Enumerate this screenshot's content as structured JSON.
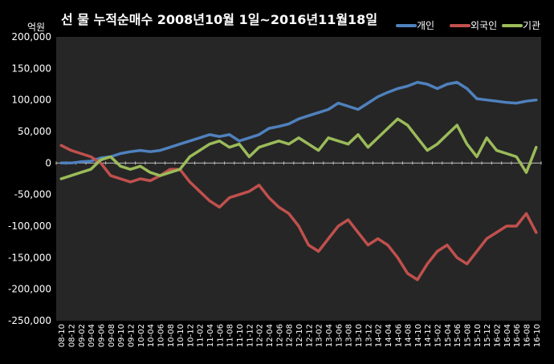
{
  "chart_data": {
    "type": "line",
    "title": "선 물 누적순매수 2008년10월 1일~2016년11월18일",
    "unit_label": "억원",
    "ylim": [
      -250000,
      200000
    ],
    "y_ticks": [
      200000,
      150000,
      100000,
      50000,
      0,
      -50000,
      -100000,
      -150000,
      -200000,
      -250000
    ],
    "y_tick_labels": [
      "200,000",
      "150,000",
      "100,000",
      "50,000",
      "0",
      "-50,000",
      "-100,000",
      "-150,000",
      "-200,000",
      "-250,000"
    ],
    "x_tick_labels": [
      "08-10",
      "08-12",
      "09-02",
      "09-04",
      "09-06",
      "09-08",
      "09-10",
      "09-12",
      "10-02",
      "10-04",
      "10-06",
      "10-08",
      "10-10",
      "10-12",
      "11-02",
      "11-04",
      "11-06",
      "11-08",
      "11-10",
      "11-12",
      "12-02",
      "12-04",
      "12-06",
      "12-08",
      "12-10",
      "12-12",
      "13-02",
      "13-04",
      "13-06",
      "13-08",
      "13-10",
      "13-12",
      "14-02",
      "14-04",
      "14-06",
      "14-08",
      "14-10",
      "14-12",
      "15-02",
      "15-04",
      "15-06",
      "15-08",
      "15-10",
      "15-12",
      "16-02",
      "16-04",
      "16-06",
      "16-08",
      "16-10"
    ],
    "grid": false,
    "legend_position": "top-right",
    "series": [
      {
        "name": "개인",
        "color": "#4f81bd",
        "values": [
          0,
          0,
          2000,
          3000,
          8000,
          10000,
          15000,
          18000,
          20000,
          18000,
          20000,
          25000,
          30000,
          35000,
          40000,
          45000,
          42000,
          45000,
          35000,
          40000,
          45000,
          55000,
          58000,
          62000,
          70000,
          75000,
          80000,
          85000,
          95000,
          90000,
          85000,
          95000,
          105000,
          112000,
          118000,
          122000,
          128000,
          125000,
          118000,
          125000,
          128000,
          118000,
          102000,
          100000,
          98000,
          96000,
          95000,
          98000,
          100000
        ]
      },
      {
        "name": "외국인",
        "color": "#c0504d",
        "values": [
          28000,
          20000,
          15000,
          10000,
          0,
          -20000,
          -25000,
          -30000,
          -25000,
          -28000,
          -20000,
          -10000,
          -10000,
          -30000,
          -45000,
          -60000,
          -70000,
          -55000,
          -50000,
          -45000,
          -35000,
          -55000,
          -70000,
          -80000,
          -100000,
          -130000,
          -140000,
          -120000,
          -100000,
          -90000,
          -110000,
          -130000,
          -120000,
          -130000,
          -150000,
          -175000,
          -185000,
          -160000,
          -140000,
          -130000,
          -150000,
          -160000,
          -140000,
          -120000,
          -110000,
          -100000,
          -100000,
          -80000,
          -110000
        ]
      },
      {
        "name": "기관",
        "color": "#9bbb59",
        "values": [
          -25000,
          -20000,
          -15000,
          -10000,
          5000,
          10000,
          -5000,
          -10000,
          -5000,
          -15000,
          -20000,
          -15000,
          -10000,
          10000,
          20000,
          30000,
          35000,
          25000,
          30000,
          10000,
          25000,
          30000,
          35000,
          30000,
          40000,
          30000,
          20000,
          40000,
          35000,
          30000,
          45000,
          25000,
          40000,
          55000,
          70000,
          60000,
          40000,
          20000,
          30000,
          45000,
          60000,
          30000,
          10000,
          40000,
          20000,
          15000,
          10000,
          -15000,
          25000
        ]
      }
    ]
  }
}
